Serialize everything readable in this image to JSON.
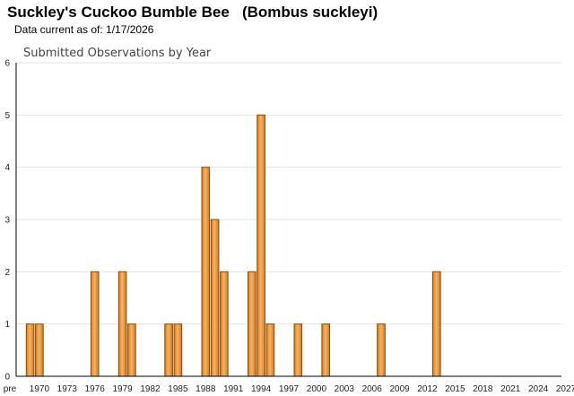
{
  "header": {
    "title": "Suckley's Cuckoo Bumble Bee   (Bombus suckleyi)",
    "data_current": "Data current as of: 1/17/2026"
  },
  "colors": {
    "bar_light": "#f6b461",
    "bar_dark": "#d77a1f",
    "bar_stroke": "#8a4a0c"
  },
  "chart_data": {
    "type": "bar",
    "title": "Submitted Observations by Year",
    "xlabel": "",
    "ylabel": "",
    "ylim": [
      0,
      6
    ],
    "yticks": [
      0,
      1,
      2,
      3,
      4,
      5,
      6
    ],
    "grid": true,
    "x_tick_labels": [
      "pre",
      "1970",
      "1973",
      "1976",
      "1979",
      "1982",
      "1985",
      "1988",
      "1991",
      "1994",
      "1997",
      "2000",
      "2003",
      "2006",
      "2009",
      "2012",
      "2015",
      "2018",
      "2021",
      "2024",
      "2027"
    ],
    "categories": [
      "pre",
      "1969",
      "1970",
      "1971",
      "1972",
      "1973",
      "1974",
      "1975",
      "1976",
      "1977",
      "1978",
      "1979",
      "1980",
      "1981",
      "1982",
      "1983",
      "1984",
      "1985",
      "1986",
      "1987",
      "1988",
      "1989",
      "1990",
      "1991",
      "1992",
      "1993",
      "1994",
      "1995",
      "1996",
      "1997",
      "1998",
      "1999",
      "2000",
      "2001",
      "2002",
      "2003",
      "2004",
      "2005",
      "2006",
      "2007",
      "2008",
      "2009",
      "2010",
      "2011",
      "2012",
      "2013",
      "2014",
      "2015",
      "2016",
      "2017",
      "2018",
      "2019",
      "2020",
      "2021",
      "2022",
      "2023",
      "2024",
      "2025",
      "2026",
      "2027"
    ],
    "values": [
      0,
      1,
      1,
      0,
      0,
      0,
      0,
      0,
      2,
      0,
      0,
      2,
      1,
      0,
      0,
      0,
      1,
      1,
      0,
      0,
      4,
      3,
      2,
      0,
      0,
      2,
      5,
      1,
      0,
      0,
      1,
      0,
      0,
      1,
      0,
      0,
      0,
      0,
      0,
      1,
      0,
      0,
      0,
      0,
      0,
      2,
      0,
      0,
      0,
      0,
      0,
      0,
      0,
      0,
      0,
      0,
      0,
      0,
      0,
      0
    ]
  }
}
